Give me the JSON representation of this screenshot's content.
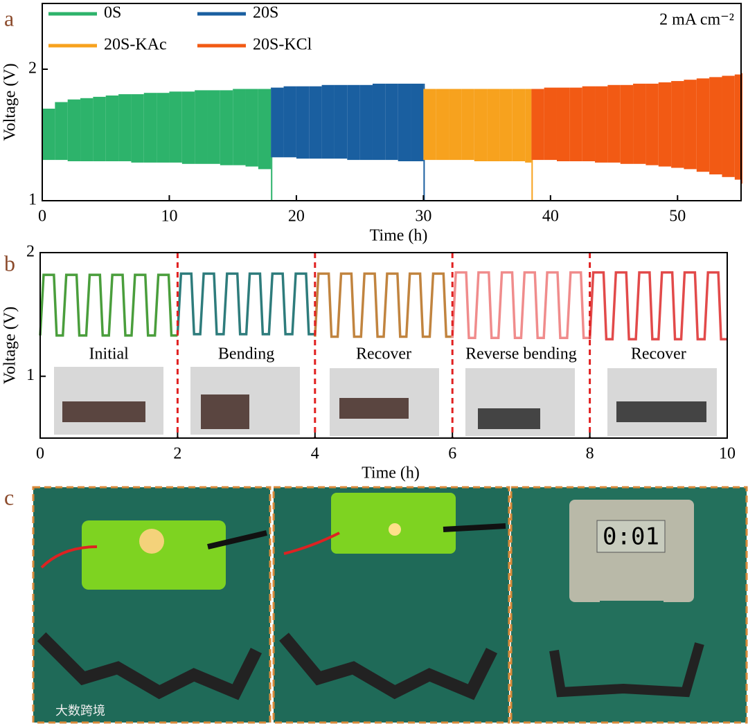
{
  "panels": [
    "a",
    "b",
    "c"
  ],
  "clock_display": "0:01",
  "watermark": "大数跨境",
  "chart_data": [
    {
      "type": "area",
      "xlabel": "Time (h)",
      "ylabel": "Voltage (V)",
      "annotation": "2 mA cm⁻²",
      "xlim": [
        0,
        55
      ],
      "ylim": [
        1,
        2.5
      ],
      "xticks": [
        0,
        10,
        20,
        30,
        40,
        50
      ],
      "yticks": [
        1,
        2
      ],
      "grid": false,
      "legend": "upper left",
      "series": [
        {
          "name": "0S",
          "color": "#2db36b",
          "x": [
            0,
            1,
            2,
            3,
            4,
            5,
            6,
            7,
            8,
            9,
            10,
            11,
            12,
            13,
            14,
            15,
            16,
            17,
            18
          ],
          "upper": [
            1.7,
            1.75,
            1.77,
            1.78,
            1.79,
            1.8,
            1.81,
            1.81,
            1.82,
            1.82,
            1.83,
            1.83,
            1.84,
            1.84,
            1.84,
            1.85,
            1.85,
            1.85,
            1.86
          ],
          "lower": [
            1.31,
            1.31,
            1.3,
            1.3,
            1.3,
            1.3,
            1.3,
            1.29,
            1.29,
            1.29,
            1.29,
            1.28,
            1.28,
            1.28,
            1.27,
            1.27,
            1.26,
            1.24,
            1.0
          ]
        },
        {
          "name": "20S",
          "color": "#1a5fa0",
          "x": [
            18,
            19,
            20,
            21,
            22,
            23,
            24,
            25,
            26,
            27,
            28,
            29,
            30
          ],
          "upper": [
            1.86,
            1.87,
            1.87,
            1.87,
            1.88,
            1.88,
            1.88,
            1.88,
            1.89,
            1.89,
            1.89,
            1.89,
            1.89
          ],
          "lower": [
            1.33,
            1.33,
            1.32,
            1.32,
            1.32,
            1.32,
            1.31,
            1.31,
            1.31,
            1.31,
            1.3,
            1.3,
            1.0
          ]
        },
        {
          "name": "20S-KAc",
          "color": "#f7a21e",
          "x": [
            30,
            31,
            32,
            33,
            34,
            35,
            36,
            37,
            38,
            38.5
          ],
          "upper": [
            1.85,
            1.85,
            1.85,
            1.85,
            1.85,
            1.85,
            1.85,
            1.85,
            1.85,
            1.85
          ],
          "lower": [
            1.31,
            1.31,
            1.31,
            1.31,
            1.3,
            1.3,
            1.3,
            1.3,
            1.29,
            1.0
          ]
        },
        {
          "name": "20S-KCl",
          "color": "#f25a14",
          "x": [
            38.5,
            39.5,
            40.5,
            41.5,
            42.5,
            43.5,
            44.5,
            45.5,
            46.5,
            47.5,
            48.5,
            49.5,
            50.5,
            51.5,
            52.5,
            53.5,
            54.5,
            55
          ],
          "upper": [
            1.85,
            1.86,
            1.86,
            1.86,
            1.87,
            1.87,
            1.88,
            1.88,
            1.89,
            1.89,
            1.9,
            1.91,
            1.92,
            1.93,
            1.94,
            1.95,
            1.96,
            1.97
          ],
          "lower": [
            1.31,
            1.31,
            1.3,
            1.3,
            1.3,
            1.29,
            1.29,
            1.28,
            1.28,
            1.27,
            1.26,
            1.25,
            1.24,
            1.22,
            1.2,
            1.18,
            1.16,
            1.13
          ]
        }
      ]
    },
    {
      "type": "line",
      "xlabel": "Time (h)",
      "ylabel": "Voltage (V)",
      "xlim": [
        0,
        10
      ],
      "ylim": [
        0.5,
        2
      ],
      "xticks": [
        0,
        2,
        4,
        6,
        8,
        10
      ],
      "yticks": [
        1,
        2
      ],
      "grid": false,
      "divider_color": "#e02020",
      "annotations": [
        "Initial",
        "Bending",
        "Recover",
        "Reverse bending",
        "Recover"
      ],
      "series": [
        {
          "color": "#4a9e3c",
          "x": [
            0,
            0.05,
            0.2,
            0.24,
            0.33,
            0.38,
            0.53,
            0.57,
            0.67,
            0.72,
            0.87,
            0.91,
            1,
            1.05,
            1.2,
            1.24,
            1.33,
            1.38,
            1.53,
            1.57,
            1.67,
            1.72,
            1.87,
            1.91,
            2
          ],
          "values": [
            1.33,
            1.82,
            1.82,
            1.33,
            1.33,
            1.82,
            1.82,
            1.33,
            1.33,
            1.82,
            1.82,
            1.33,
            1.33,
            1.82,
            1.82,
            1.33,
            1.33,
            1.82,
            1.82,
            1.33,
            1.33,
            1.82,
            1.82,
            1.33,
            1.33
          ]
        },
        {
          "color": "#2e7c7c",
          "x": [
            2,
            2.05,
            2.2,
            2.24,
            2.33,
            2.38,
            2.53,
            2.57,
            2.67,
            2.72,
            2.87,
            2.91,
            3,
            3.05,
            3.2,
            3.24,
            3.33,
            3.38,
            3.53,
            3.57,
            3.67,
            3.72,
            3.87,
            3.91,
            4
          ],
          "values": [
            1.34,
            1.83,
            1.83,
            1.34,
            1.34,
            1.83,
            1.83,
            1.34,
            1.34,
            1.83,
            1.83,
            1.34,
            1.34,
            1.83,
            1.83,
            1.34,
            1.34,
            1.83,
            1.83,
            1.34,
            1.34,
            1.83,
            1.83,
            1.34,
            1.34
          ]
        },
        {
          "color": "#c1843f",
          "x": [
            4,
            4.05,
            4.2,
            4.24,
            4.33,
            4.38,
            4.53,
            4.57,
            4.67,
            4.72,
            4.87,
            4.91,
            5,
            5.05,
            5.2,
            5.24,
            5.33,
            5.38,
            5.53,
            5.57,
            5.67,
            5.72,
            5.87,
            5.91,
            6
          ],
          "values": [
            1.32,
            1.83,
            1.83,
            1.32,
            1.32,
            1.83,
            1.83,
            1.32,
            1.32,
            1.83,
            1.83,
            1.32,
            1.32,
            1.83,
            1.83,
            1.32,
            1.32,
            1.83,
            1.83,
            1.32,
            1.32,
            1.83,
            1.83,
            1.32,
            1.32
          ]
        },
        {
          "color": "#f08c8c",
          "x": [
            6,
            6.05,
            6.2,
            6.24,
            6.33,
            6.38,
            6.53,
            6.57,
            6.67,
            6.72,
            6.87,
            6.91,
            7,
            7.05,
            7.2,
            7.24,
            7.33,
            7.38,
            7.53,
            7.57,
            7.67,
            7.72,
            7.87,
            7.91,
            8
          ],
          "values": [
            1.31,
            1.84,
            1.84,
            1.31,
            1.31,
            1.84,
            1.84,
            1.31,
            1.31,
            1.84,
            1.84,
            1.31,
            1.31,
            1.84,
            1.84,
            1.31,
            1.31,
            1.84,
            1.84,
            1.31,
            1.31,
            1.84,
            1.84,
            1.31,
            1.31
          ]
        },
        {
          "color": "#e24a4a",
          "x": [
            8,
            8.05,
            8.2,
            8.24,
            8.33,
            8.38,
            8.53,
            8.57,
            8.67,
            8.72,
            8.87,
            8.91,
            9,
            9.05,
            9.2,
            9.24,
            9.33,
            9.38,
            9.53,
            9.57,
            9.67,
            9.72,
            9.87,
            9.91,
            10
          ],
          "values": [
            1.3,
            1.84,
            1.84,
            1.3,
            1.3,
            1.84,
            1.84,
            1.3,
            1.3,
            1.84,
            1.84,
            1.3,
            1.3,
            1.84,
            1.84,
            1.3,
            1.3,
            1.84,
            1.84,
            1.3,
            1.3,
            1.84,
            1.84,
            1.3,
            1.3
          ]
        }
      ]
    }
  ]
}
